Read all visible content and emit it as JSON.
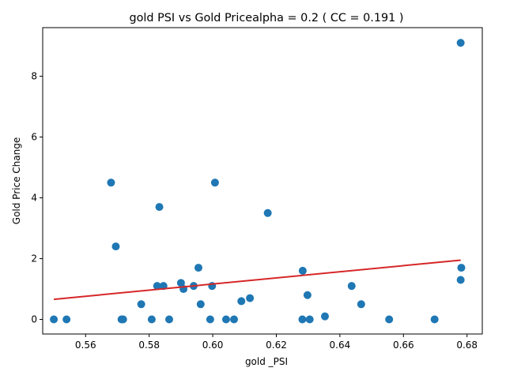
{
  "chart_data": {
    "type": "scatter",
    "title": "gold  PSI vs Gold Pricealpha = 0.2 ( CC = 0.191 )",
    "xlabel": "gold _PSI",
    "ylabel": "Gold Price Change",
    "xlim": [
      0.5465,
      0.6848
    ],
    "ylim": [
      -0.48,
      9.6
    ],
    "xticks": [
      0.56,
      0.58,
      0.6,
      0.62,
      0.64,
      0.66,
      0.68
    ],
    "xtick_labels": [
      "0.56",
      "0.58",
      "0.60",
      "0.62",
      "0.64",
      "0.66",
      "0.68"
    ],
    "yticks": [
      0,
      2,
      4,
      6,
      8
    ],
    "ytick_labels": [
      "0",
      "2",
      "4",
      "6",
      "8"
    ],
    "grid": false,
    "point_color": "#1f77b4",
    "line_color": "#d62728",
    "points": [
      {
        "x": 0.55,
        "y": 0.0
      },
      {
        "x": 0.554,
        "y": 0.0
      },
      {
        "x": 0.568,
        "y": 4.5
      },
      {
        "x": 0.5695,
        "y": 2.4
      },
      {
        "x": 0.5713,
        "y": 0.0
      },
      {
        "x": 0.5718,
        "y": 0.0
      },
      {
        "x": 0.5775,
        "y": 0.5
      },
      {
        "x": 0.5808,
        "y": 0.0
      },
      {
        "x": 0.5825,
        "y": 1.1
      },
      {
        "x": 0.5832,
        "y": 3.7
      },
      {
        "x": 0.5845,
        "y": 1.1
      },
      {
        "x": 0.5863,
        "y": 0.0
      },
      {
        "x": 0.59,
        "y": 1.2
      },
      {
        "x": 0.5908,
        "y": 1.0
      },
      {
        "x": 0.594,
        "y": 1.1
      },
      {
        "x": 0.5955,
        "y": 1.7
      },
      {
        "x": 0.5962,
        "y": 0.5
      },
      {
        "x": 0.5992,
        "y": 0.0
      },
      {
        "x": 0.5998,
        "y": 1.1
      },
      {
        "x": 0.6007,
        "y": 4.5
      },
      {
        "x": 0.6042,
        "y": 0.0
      },
      {
        "x": 0.6067,
        "y": 0.0
      },
      {
        "x": 0.609,
        "y": 0.6
      },
      {
        "x": 0.6117,
        "y": 0.7
      },
      {
        "x": 0.6173,
        "y": 3.5
      },
      {
        "x": 0.6282,
        "y": 0.0
      },
      {
        "x": 0.6283,
        "y": 1.6
      },
      {
        "x": 0.6298,
        "y": 0.8
      },
      {
        "x": 0.6305,
        "y": 0.0
      },
      {
        "x": 0.6353,
        "y": 0.1
      },
      {
        "x": 0.6437,
        "y": 1.1
      },
      {
        "x": 0.6467,
        "y": 0.5
      },
      {
        "x": 0.6555,
        "y": 0.0
      },
      {
        "x": 0.6698,
        "y": 0.0
      },
      {
        "x": 0.678,
        "y": 9.1
      },
      {
        "x": 0.6782,
        "y": 1.7
      },
      {
        "x": 0.678,
        "y": 1.3
      }
    ],
    "fit_line": {
      "x": [
        0.55,
        0.678
      ],
      "y": [
        0.66,
        1.95
      ]
    }
  }
}
